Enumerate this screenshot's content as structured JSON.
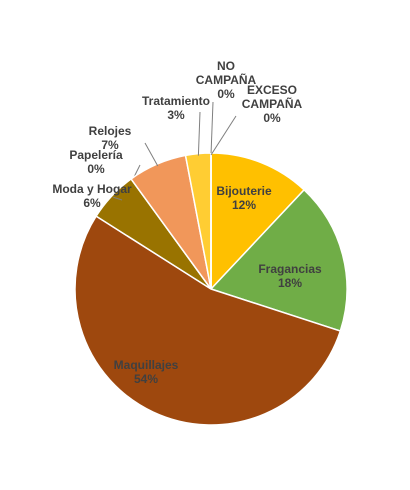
{
  "chart_data": {
    "type": "pie",
    "categories": [
      "Bijouterie",
      "Fragancias",
      "Maquillajes",
      "Moda y Hogar",
      "Papelería",
      "Relojes",
      "Tratamiento",
      "NO CAMPAÑA",
      "EXCESO CAMPAÑA"
    ],
    "values": [
      12,
      18,
      54,
      6,
      0,
      7,
      3,
      0,
      0
    ],
    "value_labels": [
      "12%",
      "18%",
      "54%",
      "6%",
      "0%",
      "7%",
      "3%",
      "0%",
      "0%"
    ],
    "colors": [
      "#ffc000",
      "#70ad47",
      "#9e480e",
      "#997300",
      "#264478",
      "#f1975a",
      "#ffcd33",
      "#43682b",
      "#636363"
    ]
  }
}
